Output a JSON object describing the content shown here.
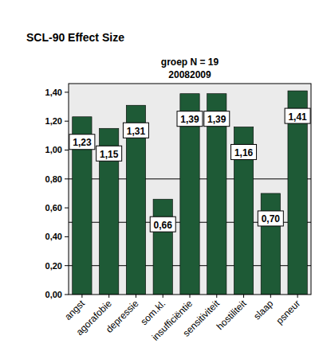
{
  "chart_data": {
    "type": "bar",
    "title": "SCL-90 Effect Size",
    "subtitle": [
      "groep N = 19",
      "20082009"
    ],
    "categories": [
      "angst",
      "agorafobie",
      "depressie",
      "som.kl.",
      "insufficiëntie",
      "sensitiviteit",
      "hostiliteit",
      "slaap",
      "psneur"
    ],
    "values": [
      1.23,
      1.15,
      1.31,
      0.66,
      1.39,
      1.39,
      1.16,
      0.7,
      1.41
    ],
    "value_labels": [
      "1,23",
      "1,15",
      "1,31",
      "0,66",
      "1,39",
      "1,39",
      "1,16",
      "0,70",
      "1,41"
    ],
    "color": "#1e5a36",
    "ylim": [
      0,
      1.46
    ],
    "yticks": [
      {
        "value": 0,
        "label": "0,00"
      },
      {
        "value": 0.2,
        "label": "0,20"
      },
      {
        "value": 0.4,
        "label": "0,40"
      },
      {
        "value": 0.6,
        "label": "0,60"
      },
      {
        "value": 0.8,
        "label": "0,80"
      },
      {
        "value": 1.0,
        "label": "1,00"
      },
      {
        "value": 1.2,
        "label": "1,20"
      },
      {
        "value": 1.4,
        "label": "1,40"
      }
    ],
    "reference_lines": [
      0.2,
      0.5,
      0.8
    ],
    "data_labels": true,
    "grid": false
  }
}
